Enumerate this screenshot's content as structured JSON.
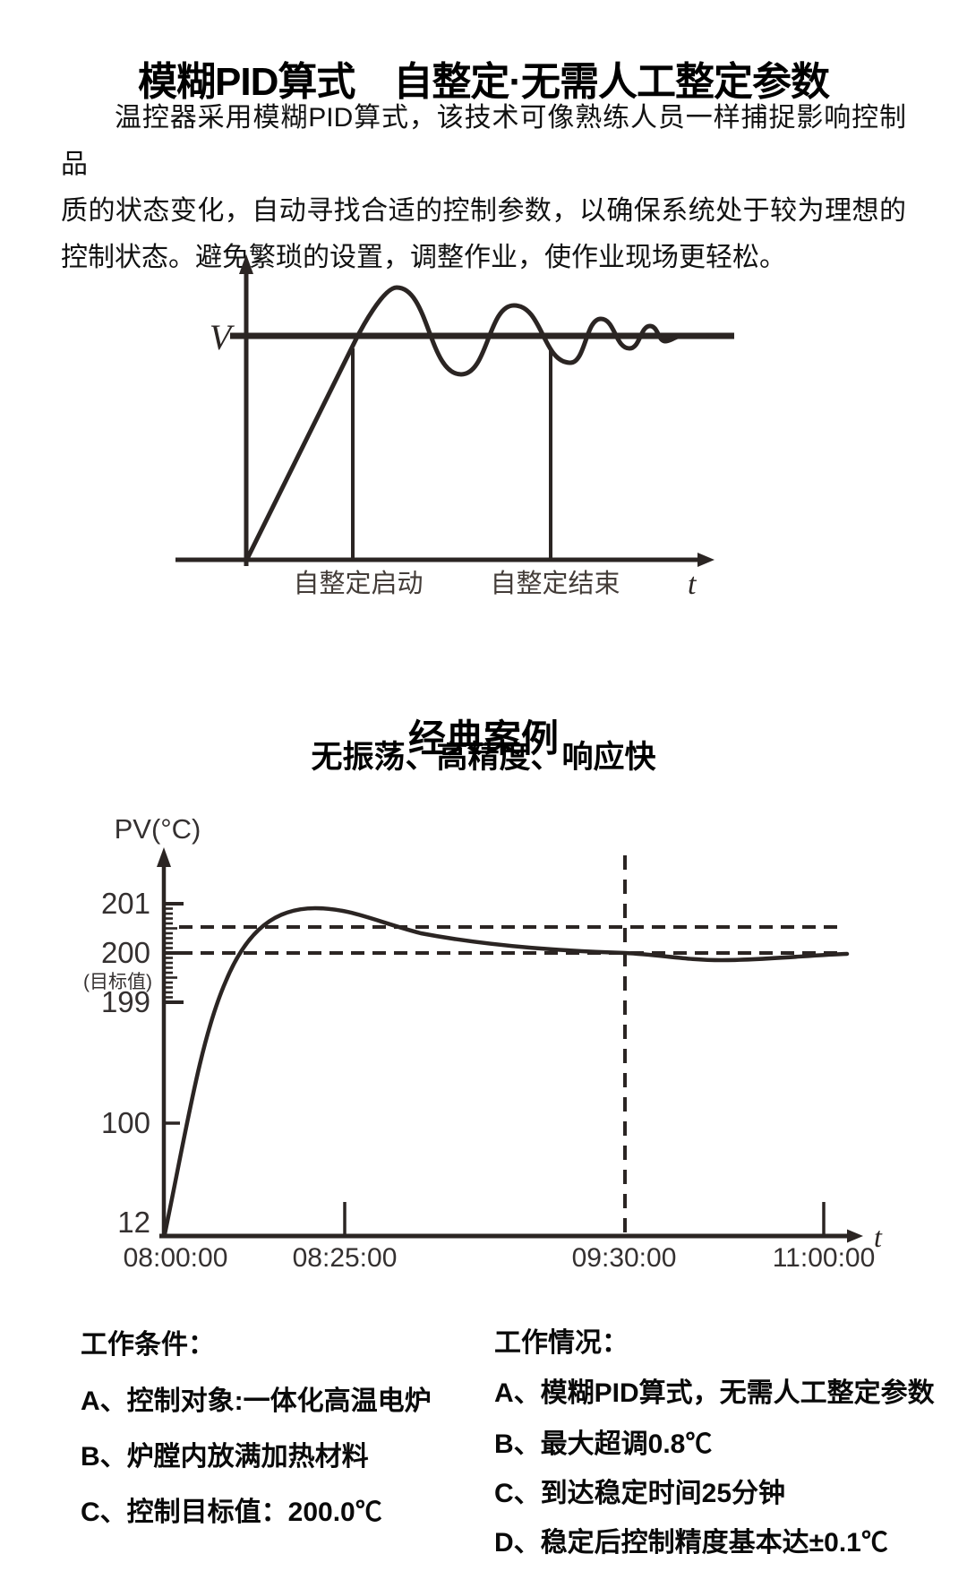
{
  "title": "模糊PID算式　自整定·无需人工整定参数",
  "intro": {
    "lines": [
      "温控器采用模糊PID算式，该技术可像熟练人员一样捕捉影响控制品",
      "质的状态变化，自动寻找合适的控制参数，以确保系统处于较为理想的",
      "控制状态。避免繁琐的设置，调整作业，使作业现场更轻松。"
    ]
  },
  "case_section": {
    "title": "经典案例",
    "subtitle": "无振荡、高精度、响应快"
  },
  "chart_data": [
    {
      "type": "line",
      "ylabel": "V",
      "xlabel": "t",
      "marker_start_label": "自整定启动",
      "marker_end_label": "自整定结束",
      "legend_position": "none",
      "grid": false,
      "description_units": "normalized, setpoint V = 1.0, t = 0–100",
      "series": [
        {
          "name": "self-tuning response",
          "x": [
            0,
            19,
            23,
            30,
            36,
            42,
            48,
            52,
            56,
            59,
            62,
            65,
            68,
            75,
            100
          ],
          "y": [
            0,
            0.98,
            1.22,
            0.83,
            1.14,
            0.88,
            1.09,
            0.93,
            1.06,
            0.96,
            1.03,
            0.98,
            1.01,
            1.0,
            1.0
          ]
        }
      ],
      "markers": [
        {
          "label": "自整定启动",
          "x": 18
        },
        {
          "label": "自整定结束",
          "x": 52
        }
      ]
    },
    {
      "type": "line",
      "ylabel": "PV(°C)",
      "xlabel": "t",
      "y_tick_labels": [
        "201",
        "200",
        "199",
        "100",
        "12"
      ],
      "target_note": "(目标值)",
      "target_value": 200.0,
      "dashed_levels": [
        200.5,
        200.0
      ],
      "x_ticks": [
        "08:00:00",
        "08:25:00",
        "09:30:00",
        "11:00:00"
      ],
      "stabilize_marker_x": "09:30:00",
      "overshoot_peak": 200.8,
      "grid": false,
      "axis_note": "non-linear y axis: 12, 100, then zoomed band 199–201 with 0.1°C ruler ticks",
      "points": [
        [
          "08:00:00",
          12
        ],
        [
          "08:05:00",
          80
        ],
        [
          "08:10:00",
          155
        ],
        [
          "08:15:00",
          195
        ],
        [
          "08:20:00",
          200.3
        ],
        [
          "08:25:00",
          200.8
        ],
        [
          "08:35:00",
          200.6
        ],
        [
          "08:50:00",
          200.4
        ],
        [
          "09:10:00",
          200.15
        ],
        [
          "09:30:00",
          200.0
        ],
        [
          "09:50:00",
          199.9
        ],
        [
          "10:20:00",
          199.9
        ],
        [
          "11:00:00",
          199.95
        ]
      ]
    }
  ],
  "work_conditions": {
    "title": "工作条件：",
    "items": [
      "A、控制对象:一体化高温电炉",
      "B、炉膛内放满加热材料",
      "C、控制目标值：200.0℃"
    ]
  },
  "work_results": {
    "title": "工作情况：",
    "items": [
      "A、模糊PID算式，无需人工整定参数",
      "B、最大超调0.8℃",
      "C、到达稳定时间25分钟",
      "D、稳定后控制精度基本达±0.1℃"
    ]
  }
}
